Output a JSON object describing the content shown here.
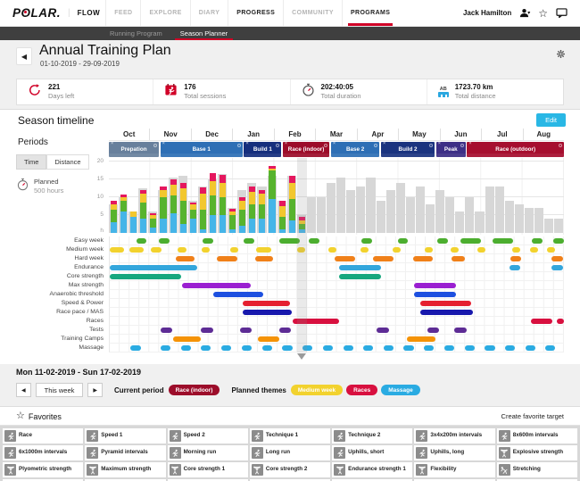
{
  "brand": {
    "logo_text_pre": "P",
    "logo_o": "O",
    "logo_text_post": "LAR",
    "logo_dot": ".",
    "accent_red": "#d10027"
  },
  "nav": {
    "flow_label": "FLOW",
    "items": [
      {
        "label": "FEED",
        "active": false,
        "underline": false
      },
      {
        "label": "EXPLORE",
        "active": false,
        "underline": false
      },
      {
        "label": "DIARY",
        "active": false,
        "underline": false
      },
      {
        "label": "PROGRESS",
        "active": true,
        "underline": false
      },
      {
        "label": "COMMUNITY",
        "active": false,
        "underline": false
      },
      {
        "label": "PROGRAMS",
        "active": true,
        "underline": true
      }
    ],
    "user_name": "Jack Hamilton"
  },
  "subnav": {
    "items": [
      {
        "label": "Running Program",
        "active": false
      },
      {
        "label": "Season Planner",
        "active": true
      }
    ]
  },
  "header": {
    "title": "Annual Training Plan",
    "date_range": "01-10-2019 - 29-09-2019"
  },
  "stats": [
    {
      "icon": "days-left-icon",
      "value": "221",
      "label": "Days left"
    },
    {
      "icon": "sessions-icon",
      "value": "176",
      "label": "Total sessions"
    },
    {
      "icon": "duration-icon",
      "value": "202:40:05",
      "label": "Total duration"
    },
    {
      "icon": "distance-icon",
      "value": "1723.70 km",
      "label": "Total distance"
    }
  ],
  "season": {
    "title": "Season timeline",
    "edit_label": "Edit",
    "months": [
      "Oct",
      "Nov",
      "Dec",
      "Jan",
      "Feb",
      "Mar",
      "Apr",
      "May",
      "Jun",
      "Jul",
      "Aug"
    ],
    "periods_label": "Periods",
    "tabs": [
      {
        "label": "Time",
        "active": true
      },
      {
        "label": "Distance",
        "active": false
      }
    ],
    "periods": [
      {
        "name": "Prepation",
        "color": "#68809c",
        "start": 0,
        "width": 11
      },
      {
        "name": "Base 1",
        "color": "#2e6fb5",
        "start": 11.3,
        "width": 18.1
      },
      {
        "name": "Build 1",
        "color": "#162f7d",
        "start": 29.7,
        "width": 8.2
      },
      {
        "name": "Race (indoor)",
        "color": "#9c0d2a",
        "start": 38.2,
        "width": 10.3
      },
      {
        "name": "Base 2",
        "color": "#2e6fb5",
        "start": 48.8,
        "width": 10.7
      },
      {
        "name": "Build 2",
        "color": "#1a337f",
        "start": 59.8,
        "width": 11.8
      },
      {
        "name": "Peak",
        "color": "#3d2f86",
        "start": 71.9,
        "width": 6.5
      },
      {
        "name": "Race (outdoor)",
        "color": "#a60f2f",
        "start": 78.7,
        "width": 21.3
      }
    ]
  },
  "chart_data": {
    "type": "bar",
    "stacked": true,
    "title": "",
    "xlabel": "weeks (Oct - Aug)",
    "ylabel": "h",
    "ylim": [
      0,
      20
    ],
    "yticks": [
      5,
      10,
      15,
      20
    ],
    "weeks_total": 46,
    "current_week_index": 19,
    "planned_color": "#d7d7d7",
    "planned_weekly_hours": [
      8,
      10,
      6,
      12.5,
      6,
      12,
      15.5,
      16,
      9,
      13,
      15,
      16.5,
      7,
      12,
      14,
      13,
      16,
      9,
      16,
      5,
      10,
      10,
      14,
      15.5,
      12,
      13,
      15.5,
      9,
      12,
      14,
      10,
      13,
      8,
      12,
      10,
      6,
      10,
      6,
      13,
      13,
      9,
      8,
      7,
      7,
      4,
      4
    ],
    "completed_weekly_segments": {
      "order": [
        "blue",
        "green",
        "yellow",
        "pink"
      ],
      "colors": {
        "blue": "#45b5e8",
        "green": "#57b32e",
        "yellow": "#f2c72e",
        "pink": "#e5175e"
      },
      "values": [
        [
          3,
          3.5,
          1.5,
          1
        ],
        [
          6,
          3,
          1,
          0.7
        ],
        [
          4.5,
          0,
          1.5,
          0
        ],
        [
          4,
          4.5,
          2.5,
          1
        ],
        [
          1.5,
          2.5,
          1,
          0.6
        ],
        [
          4,
          6,
          2,
          1
        ],
        [
          5.5,
          5,
          3,
          1.5
        ],
        [
          2.5,
          6.5,
          3.5,
          1.5
        ],
        [
          4,
          2.5,
          1.5,
          0.6
        ],
        [
          1,
          5.5,
          4.5,
          1.7
        ],
        [
          5,
          5.5,
          4,
          2.2
        ],
        [
          5,
          5,
          4,
          2.3
        ],
        [
          1,
          4,
          1,
          0.7
        ],
        [
          2,
          4.5,
          2.5,
          1
        ],
        [
          4,
          4,
          3.5,
          1.4
        ],
        [
          4,
          4,
          3,
          1
        ],
        [
          9.5,
          8,
          0.5,
          0.8
        ],
        [
          1,
          3.5,
          3,
          1.4
        ],
        [
          3.5,
          6,
          4.5,
          2
        ],
        [
          1,
          1.5,
          1,
          1
        ]
      ]
    },
    "planned_total": {
      "label": "Planned",
      "value": "500 hours"
    }
  },
  "gantt": {
    "rows": [
      {
        "label": "Easy week",
        "color": "#4cae2f",
        "segments": [
          [
            5.8,
            2.3
          ],
          [
            10.8,
            2.3
          ],
          [
            20.5,
            2.3
          ],
          [
            29.5,
            2.3
          ],
          [
            37.4,
            4.5
          ],
          [
            43.8,
            2.3
          ],
          [
            55.4,
            2.3
          ],
          [
            63.4,
            2.3
          ],
          [
            72.2,
            2.3
          ],
          [
            77.2,
            4.5
          ],
          [
            84.2,
            4.7
          ],
          [
            93,
            2.3
          ],
          [
            97.6,
            2.4
          ]
        ]
      },
      {
        "label": "Medium week",
        "color": "#f2d22e",
        "segments": [
          [
            0,
            3.2
          ],
          [
            4.3,
            3.2
          ],
          [
            9.1,
            2.2
          ],
          [
            15,
            1.8
          ],
          [
            20.3,
            1.8
          ],
          [
            26.5,
            1.8
          ],
          [
            32.3,
            3.2
          ],
          [
            41.2,
            1.8
          ],
          [
            48.2,
            1.8
          ],
          [
            55.2,
            1.8
          ],
          [
            62.2,
            1.8
          ],
          [
            69.3,
            1.8
          ],
          [
            75,
            1.8
          ],
          [
            81,
            1.8
          ],
          [
            88.6,
            1.8
          ],
          [
            92.5,
            1.8
          ],
          [
            96.2,
            1.8
          ]
        ]
      },
      {
        "label": "Hard week",
        "color": "#f08019",
        "segments": [
          [
            14.6,
            4
          ],
          [
            23.6,
            4.4
          ],
          [
            32,
            4
          ],
          [
            49.6,
            4.4
          ],
          [
            58,
            4.4
          ],
          [
            66.7,
            4.4
          ],
          [
            75.3,
            2.8
          ],
          [
            88.2,
            2.4
          ],
          [
            97.2,
            2.6
          ]
        ]
      },
      {
        "label": "Endurance",
        "color": "#33a6dc",
        "segments": [
          [
            0,
            19.3
          ],
          [
            50.4,
            9.4
          ],
          [
            88,
            2.4
          ],
          [
            97.2,
            2.6
          ]
        ]
      },
      {
        "label": "Core strength",
        "color": "#17a77e",
        "segments": [
          [
            0,
            15.7
          ],
          [
            50.4,
            9.4
          ]
        ]
      },
      {
        "label": "Max strength",
        "color": "#9a1fd1",
        "segments": [
          [
            16,
            15
          ],
          [
            67,
            9.2
          ]
        ]
      },
      {
        "label": "Anaerobic threshold",
        "color": "#1d50e0",
        "segments": [
          [
            22.7,
            11
          ],
          [
            67,
            9.2
          ]
        ]
      },
      {
        "label": "Speed & Power",
        "color": "#e51f30",
        "segments": [
          [
            29.3,
            10.4
          ],
          [
            68.3,
            11.3
          ]
        ]
      },
      {
        "label": "Race pace / MAS",
        "color": "#1718ad",
        "segments": [
          [
            29.3,
            10.8
          ],
          [
            68.3,
            11.7
          ]
        ]
      },
      {
        "label": "Races",
        "color": "#d8103f",
        "segments": [
          [
            40.2,
            10.2
          ],
          [
            92.8,
            4.6
          ],
          [
            98.4,
            1.6
          ]
        ]
      },
      {
        "label": "Tests",
        "color": "#5d2c95",
        "segments": [
          [
            11.2,
            2.6
          ],
          [
            20.1,
            2.6
          ],
          [
            28.7,
            2.6
          ],
          [
            37.3,
            2.6
          ],
          [
            58.8,
            2.6
          ],
          [
            69.9,
            2.6
          ],
          [
            75.9,
            2.6
          ]
        ]
      },
      {
        "label": "Training Camps",
        "color": "#f59307",
        "segments": [
          [
            14,
            6
          ],
          [
            32.7,
            4.6
          ],
          [
            65.5,
            6.2
          ]
        ]
      },
      {
        "label": "Massage",
        "color": "#2aabe2",
        "segments": [
          [
            4.6,
            2.2
          ],
          [
            11.2,
            2.2
          ],
          [
            15.7,
            2.2
          ],
          [
            20.1,
            2.2
          ],
          [
            24.6,
            2.2
          ],
          [
            29.1,
            2.2
          ],
          [
            33.5,
            2.2
          ],
          [
            38,
            2.2
          ],
          [
            42.4,
            2.2
          ],
          [
            46.9,
            2.2
          ],
          [
            51.4,
            2.2
          ],
          [
            55.8,
            2.2
          ],
          [
            60.3,
            2.2
          ],
          [
            64.7,
            2.2
          ],
          [
            69.2,
            2.2
          ],
          [
            73.7,
            2.2
          ],
          [
            78.1,
            2.2
          ],
          [
            82.6,
            2.2
          ],
          [
            87,
            2.2
          ],
          [
            91.5,
            2.2
          ],
          [
            95.9,
            2.2
          ]
        ]
      }
    ]
  },
  "week_details": {
    "heading": "Mon 11-02-2019 - Sun 17-02-2019",
    "this_week_label": "This week",
    "current_period_label": "Current period",
    "current_period_badge": {
      "label": "Race (indoor)",
      "color": "#9c0d2a"
    },
    "planned_themes_label": "Planned themes",
    "theme_badges": [
      {
        "label": "Medium week",
        "color": "#f2d22e"
      },
      {
        "label": "Races",
        "color": "#d8103f"
      },
      {
        "label": "Massage",
        "color": "#2aabe2"
      }
    ]
  },
  "favorites": {
    "title": "Favorites",
    "create_label": "Create favorite target",
    "items": [
      {
        "label": "Race",
        "icon": "run"
      },
      {
        "label": "Speed 1",
        "icon": "run"
      },
      {
        "label": "Speed 2",
        "icon": "run"
      },
      {
        "label": "Technique 1",
        "icon": "run"
      },
      {
        "label": "Technique 2",
        "icon": "run"
      },
      {
        "label": "3x4x200m intervals",
        "icon": "run"
      },
      {
        "label": "8x600m intervals",
        "icon": "run"
      },
      {
        "label": "6x1000m intervals",
        "icon": "run"
      },
      {
        "label": "Pyramid intervals",
        "icon": "run"
      },
      {
        "label": "Morning run",
        "icon": "run"
      },
      {
        "label": "Long run",
        "icon": "run"
      },
      {
        "label": "Uphills, short",
        "icon": "run"
      },
      {
        "label": "Uphills, long",
        "icon": "run"
      },
      {
        "label": "Explosive strength",
        "icon": "strength"
      },
      {
        "label": "Plyometric strength",
        "icon": "strength"
      },
      {
        "label": "Maximum strength",
        "icon": "strength"
      },
      {
        "label": "Core strength 1",
        "icon": "strength"
      },
      {
        "label": "Core strength 2",
        "icon": "strength"
      },
      {
        "label": "Endurance strength 1",
        "icon": "strength"
      },
      {
        "label": "Flexibility",
        "icon": "strength"
      },
      {
        "label": "Stretching",
        "icon": "stretch"
      }
    ]
  }
}
